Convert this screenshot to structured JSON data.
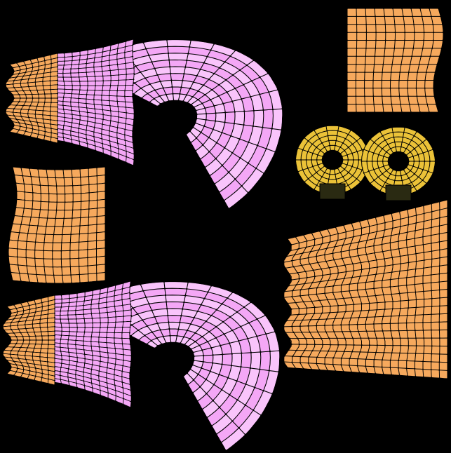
{
  "canvas": {
    "background": "#000000"
  },
  "palette": {
    "pink": "#f4a7f6",
    "pink_light": "#f9c4fb",
    "pink_deep": "#e57ae9",
    "orange": "#f6a95d",
    "orange_dark": "#e38e3c",
    "yellow": "#ebc238",
    "wire": "#000000"
  },
  "islands": [
    {
      "name": "dress-upper-island",
      "kind": "dress",
      "material": "pink",
      "trim_material": "orange"
    },
    {
      "name": "dress-lower-island",
      "kind": "dress",
      "material": "pink",
      "trim_material": "orange"
    },
    {
      "name": "sleeve-top-right-island",
      "kind": "panel",
      "material": "orange"
    },
    {
      "name": "sleeve-left-island",
      "kind": "panel",
      "material": "orange"
    },
    {
      "name": "cups-island",
      "kind": "cups",
      "material": "yellow"
    },
    {
      "name": "skirt-right-island",
      "kind": "panel",
      "material": "orange"
    }
  ]
}
